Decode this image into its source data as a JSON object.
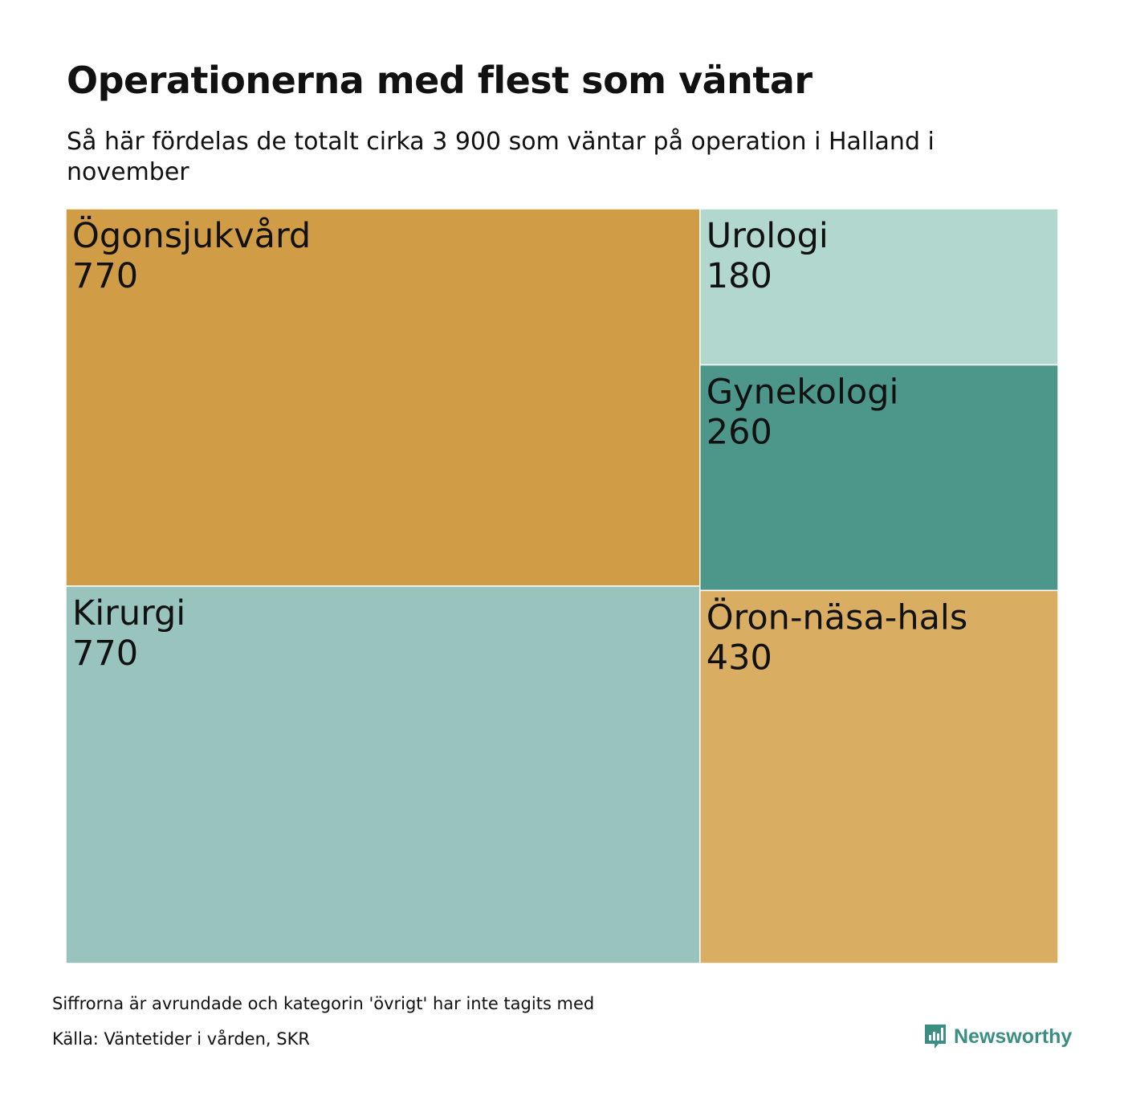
{
  "title": "Operationerna med flest som väntar",
  "subtitle": "Så här fördelas de totalt cirka 3 900 som väntar på operation i Halland i november",
  "footnote": "Siffrorna är avrundade och kategorin 'övrigt' har inte tagits med",
  "source": "Källa: Väntetider i vården, SKR",
  "brand": {
    "name": "Newsworthy",
    "icon": "newsworthy-logo-icon",
    "color": "#3a8f82"
  },
  "chart_data": {
    "type": "treemap",
    "title": "Operationerna med flest som väntar",
    "subtitle": "Så här fördelas de totalt cirka 3 900 som väntar på operation i Halland i november",
    "items": [
      {
        "name": "Ögonsjukvård",
        "value": 770,
        "color": "#d09c46"
      },
      {
        "name": "Kirurgi",
        "value": 770,
        "color": "#98c4bd"
      },
      {
        "name": "Urologi",
        "value": 180,
        "color": "#b2d7cf"
      },
      {
        "name": "Gynekologi",
        "value": 260,
        "color": "#4c978a"
      },
      {
        "name": "Öron-näsa-hals",
        "value": 430,
        "color": "#d9ae62"
      }
    ]
  }
}
